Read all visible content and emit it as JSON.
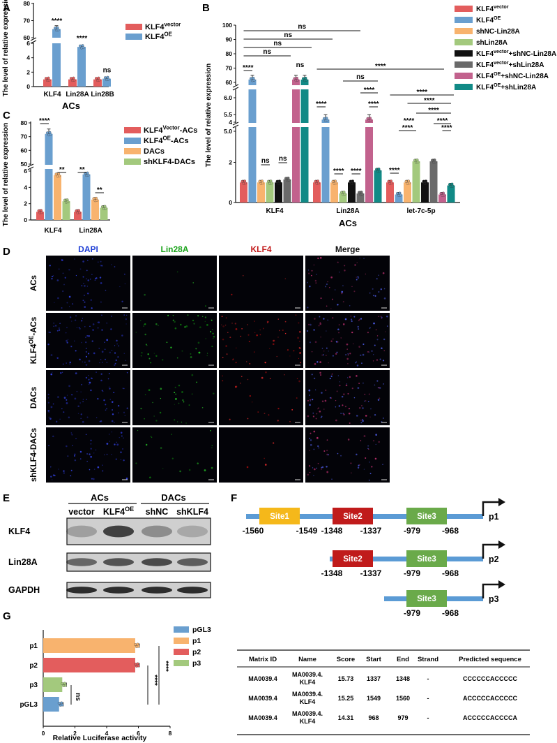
{
  "figure": {
    "panel_labels": [
      "A",
      "B",
      "C",
      "D",
      "E",
      "F",
      "G"
    ]
  },
  "chart_data": [
    {
      "id": "A",
      "type": "bar",
      "categories": [
        "KLF4",
        "Lin28A",
        "Lin28B"
      ],
      "series": [
        {
          "name": "KLF4vector",
          "name_main": "KLF4",
          "name_sup": "vector",
          "color": "#e35d5d",
          "values": [
            1,
            1,
            1
          ]
        },
        {
          "name": "KLF4OE",
          "name_main": "KLF4",
          "name_sup": "OE",
          "color": "#6a9fcf",
          "values": [
            65,
            5.5,
            1.1
          ]
        }
      ],
      "ylabel": "The level of relative expression",
      "xlabel": "ACs",
      "yticks": [
        "0",
        "2",
        "4",
        "6",
        "60",
        "70",
        "80"
      ],
      "axis_break": [
        6,
        60
      ],
      "significance": [
        "****",
        "****",
        "ns"
      ]
    },
    {
      "id": "B",
      "type": "bar",
      "categories": [
        "KLF4",
        "Lin28A",
        "let-7c-5p"
      ],
      "series": [
        {
          "name": "KLF4vector",
          "name_main": "KLF4",
          "name_sup": "vector",
          "name_rest": "",
          "color": "#e35d5d",
          "values": [
            1,
            1,
            1
          ]
        },
        {
          "name": "KLF4OE",
          "name_main": "KLF4",
          "name_sup": "OE",
          "name_rest": "",
          "color": "#6a9fcf",
          "values": [
            62,
            5.35,
            0.4
          ]
        },
        {
          "name": "shNC-Lin28A",
          "name_main": "shNC-Lin28A",
          "name_sup": "",
          "name_rest": "",
          "color": "#f8b36e",
          "values": [
            1,
            1,
            1
          ]
        },
        {
          "name": "shLin28A",
          "name_main": "shLin28A",
          "name_sup": "",
          "name_rest": "",
          "color": "#a3c97d",
          "values": [
            1,
            0.45,
            2.05
          ]
        },
        {
          "name": "KLF4vector+shNC-Lin28A",
          "name_main": "KLF4",
          "name_sup": "vector",
          "name_rest": "+shNC-Lin28A",
          "color": "#111111",
          "values": [
            1,
            1,
            1
          ]
        },
        {
          "name": "KLF4vector+shLin28A",
          "name_main": "KLF4",
          "name_sup": "vector",
          "name_rest": "+shLin28A",
          "color": "#6a6a6a",
          "values": [
            1.15,
            0.45,
            2.05
          ]
        },
        {
          "name": "KLF4OE+shNC-Lin28A",
          "name_main": "KLF4",
          "name_sup": "OE",
          "name_rest": "+shNC-Lin28A",
          "color": "#c2628d",
          "values": [
            62,
            5.35,
            0.4
          ]
        },
        {
          "name": "KLF4OE+shLin28A",
          "name_main": "KLF4",
          "name_sup": "OE",
          "name_rest": "+shLin28A",
          "color": "#118a86",
          "values": [
            62,
            1.6,
            0.85
          ]
        }
      ],
      "ylabel": "The level of relative expression",
      "xlabel": "ACs",
      "yticks": [
        "0",
        "2",
        "4",
        "5.0",
        "5.5",
        "6.0",
        "60",
        "70",
        "80",
        "90",
        "100"
      ],
      "sig_labels": [
        "ns",
        "ns",
        "ns",
        "ns",
        "****",
        "ns",
        "ns",
        "ns",
        "****",
        "****",
        "ns",
        "****",
        "****",
        "****",
        "****",
        "****",
        "****",
        "****",
        "****",
        "****",
        "****",
        "****",
        "****"
      ]
    },
    {
      "id": "C",
      "type": "bar",
      "categories": [
        "KLF4",
        "Lin28A"
      ],
      "series": [
        {
          "name": "KLF4Vector-ACs",
          "name_main": "KLF4",
          "name_sup": "Vector",
          "name_rest": "-ACs",
          "color": "#e35d5d",
          "values": [
            1,
            1
          ]
        },
        {
          "name": "KLF4OE-ACs",
          "name_main": "KLF4",
          "name_sup": "OE",
          "name_rest": "-ACs",
          "color": "#6a9fcf",
          "values": [
            72,
            5.6
          ]
        },
        {
          "name": "DACs",
          "name_main": "DACs",
          "name_sup": "",
          "name_rest": "",
          "color": "#f8b36e",
          "values": [
            5.5,
            2.5
          ]
        },
        {
          "name": "shKLF4-DACs",
          "name_main": "shKLF4-DACs",
          "name_sup": "",
          "name_rest": "",
          "color": "#a3c97d",
          "values": [
            2.3,
            1.5
          ]
        }
      ],
      "ylabel": "The level of relative expression",
      "yticks": [
        "0",
        "2",
        "4",
        "6",
        "50",
        "60",
        "70",
        "80"
      ],
      "significance": [
        "****",
        "**",
        "**",
        "**"
      ]
    },
    {
      "id": "G",
      "type": "bar",
      "orientation": "horizontal",
      "categories": [
        "p1",
        "p2",
        "p3",
        "pGL3"
      ],
      "series": [
        {
          "name": "pGL3",
          "color": "#6a9fcf",
          "values": [
            null,
            null,
            null,
            1.0
          ]
        },
        {
          "name": "p1",
          "color": "#f8b36e",
          "values": [
            5.8,
            null,
            null,
            null
          ]
        },
        {
          "name": "p2",
          "color": "#e35d5d",
          "values": [
            null,
            5.8,
            null,
            null
          ]
        },
        {
          "name": "p3",
          "color": "#a3c97d",
          "values": [
            null,
            null,
            1.2,
            null
          ]
        }
      ],
      "xlabel": "Relative Luciferase activity",
      "xticks": [
        "0",
        "2",
        "4",
        "6",
        "8"
      ],
      "xlim": [
        0,
        8
      ],
      "significance": [
        "ns",
        "****",
        "****"
      ]
    }
  ],
  "panel_D": {
    "columns": [
      "DAPI",
      "Lin28A",
      "KLF4",
      "Merge"
    ],
    "column_colors": [
      "#1f3fd6",
      "#1aa31a",
      "#c21a1a",
      "#111111"
    ],
    "rows": [
      {
        "main": "ACs",
        "sup": ""
      },
      {
        "main": "KLF4",
        "sup": "OE",
        "rest": "-ACs"
      },
      {
        "main": "DACs",
        "sup": ""
      },
      {
        "main": "shKLF4-DACs",
        "sup": ""
      }
    ]
  },
  "panel_E": {
    "groups": [
      "ACs",
      "DACs"
    ],
    "lanes": [
      "vector",
      "KLF4",
      "shNC",
      "shKLF4"
    ],
    "lane2_sup": "OE",
    "bands": [
      "KLF4",
      "Lin28A",
      "GAPDH"
    ]
  },
  "panel_F": {
    "constructs": [
      {
        "name": "p1",
        "sites": [
          "Site1",
          "Site2",
          "Site3"
        ],
        "coords": [
          "-1560",
          "-1549",
          "-1348",
          "-1337",
          "-979",
          "-968"
        ]
      },
      {
        "name": "p2",
        "sites": [
          "Site2",
          "Site3"
        ],
        "coords": [
          "-1348",
          "-1337",
          "-979",
          "-968"
        ]
      },
      {
        "name": "p3",
        "sites": [
          "Site3"
        ],
        "coords": [
          "-979",
          "-968"
        ]
      }
    ],
    "site_colors": {
      "Site1": "#f5b81a",
      "Site2": "#c01b1b",
      "Site3": "#6aaa4a"
    },
    "table": {
      "headers": [
        "Matrix ID",
        "Name",
        "Score",
        "Start",
        "End",
        "Strand",
        "Predicted sequence"
      ],
      "rows": [
        [
          "MA0039.4",
          "MA0039.4.\nKLF4",
          "15.73",
          "1337",
          "1348",
          "-",
          "CCCCCCACCCCC"
        ],
        [
          "MA0039.4",
          "MA0039.4.\nKLF4",
          "15.25",
          "1549",
          "1560",
          "-",
          "ACCCCCACCCCC"
        ],
        [
          "MA0039.4",
          "MA0039.4.\nKLF4",
          "14.31",
          "968",
          "979",
          "-",
          "ACCCCCACCCCA"
        ]
      ]
    }
  }
}
